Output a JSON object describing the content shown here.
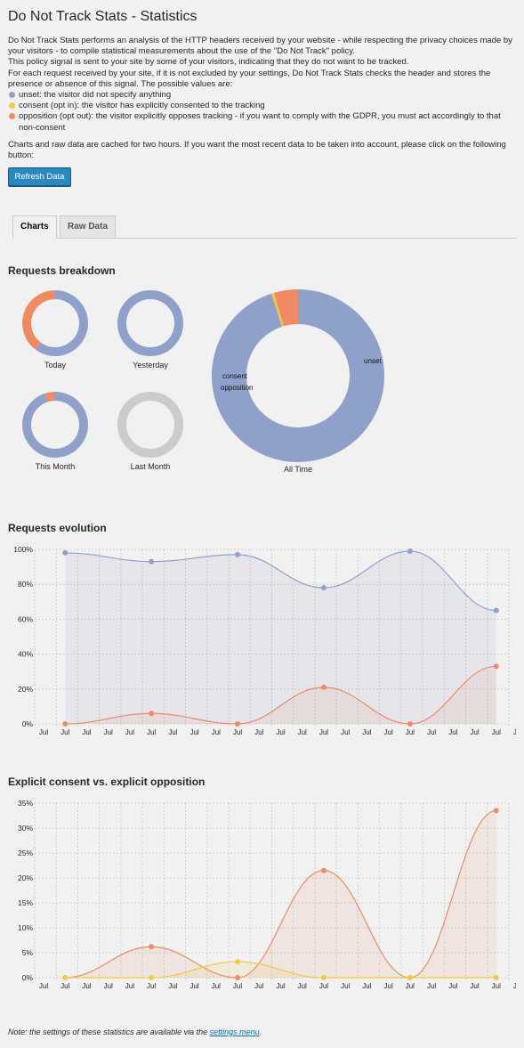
{
  "page": {
    "title": "Do Not Track Stats - Statistics",
    "intro_line1": "Do Not Track Stats performs an analysis of the HTTP headers received by your website - while respecting the privacy choices made by your visitors - to compile statistical measurements about the use of the \"Do Not Track\" policy.",
    "intro_line2": "This policy signal is sent to your site by some of your visitors, indicating that they do not want to be tracked.",
    "intro_line3": "For each request received by your site, if it is not excluded by your settings, Do Not Track Stats checks the header and stores the presence or absence of this signal. The possible values are:",
    "values": [
      {
        "text": "unset: the visitor did not specify anything",
        "color": "#8fa0cb"
      },
      {
        "text": "consent (opt in): the visitor has explicitly consented to the tracking",
        "color": "#f0c94b"
      },
      {
        "text": "opposition (opt out): the visitor explicitly opposes tracking - if you want to comply with the GDPR, you must act accordingly to that non-consent",
        "color": "#ef8a62"
      }
    ],
    "cache_text": "Charts and raw data are cached for two hours. If you want the most recent data to be taken into account, please click on the following button:",
    "refresh_label": "Refresh Data",
    "tabs": [
      "Charts",
      "Raw Data"
    ],
    "note_prefix": "Note: the settings of these statistics are available via the ",
    "note_link": "settings menu",
    "note_suffix": "."
  },
  "colors": {
    "unset": "#8fa0cb",
    "consent": "#f0c94b",
    "opposition": "#ef8a62",
    "empty": "#cccccc"
  },
  "chart_data": [
    {
      "type": "pie",
      "title": "Requests breakdown",
      "donuts": [
        {
          "label": "Today",
          "unset": 0.6,
          "consent": 0,
          "opposition": 0.4
        },
        {
          "label": "Yesterday",
          "unset": 1.0,
          "consent": 0,
          "opposition": 0
        },
        {
          "label": "This Month",
          "unset": 0.95,
          "consent": 0,
          "opposition": 0.05
        },
        {
          "label": "Last Month",
          "unset": 0,
          "consent": 0,
          "opposition": 0,
          "empty": true
        },
        {
          "label": "All Time",
          "unset": 0.95,
          "consent": 0.005,
          "opposition": 0.045,
          "slice_labels": [
            "unset",
            "consent",
            "opposition"
          ]
        }
      ]
    },
    {
      "type": "area",
      "title": "Requests evolution",
      "y_ticks": [
        "100%",
        "80%",
        "60%",
        "40%",
        "20%",
        "0%"
      ],
      "ylim": [
        0,
        100
      ],
      "x_tick_label": "Jul",
      "x_tick_count": 23,
      "series": [
        {
          "name": "unset",
          "values": [
            98,
            93,
            97,
            78,
            99,
            65
          ]
        },
        {
          "name": "opposition",
          "values": [
            0,
            6,
            0,
            21,
            0,
            33
          ]
        }
      ]
    },
    {
      "type": "area",
      "title": "Explicit consent vs. explicit opposition",
      "y_ticks": [
        "35%",
        "30%",
        "25%",
        "20%",
        "15%",
        "10%",
        "5%",
        "0%"
      ],
      "ylim": [
        0,
        35
      ],
      "x_tick_label": "Jul",
      "x_tick_count": 23,
      "series": [
        {
          "name": "opposition",
          "values": [
            0,
            6.2,
            0,
            21.5,
            0,
            33.5
          ]
        },
        {
          "name": "consent",
          "values": [
            0,
            0,
            3.2,
            0,
            0,
            0
          ]
        }
      ]
    }
  ]
}
